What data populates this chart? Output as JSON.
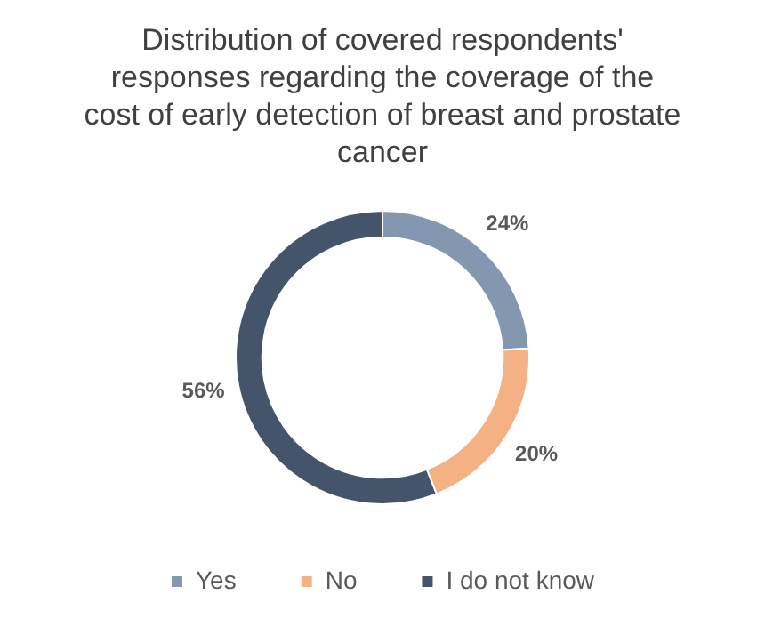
{
  "chart_data": {
    "type": "donut",
    "title": "Distribution of covered respondents' responses regarding the coverage of the cost of early detection of breast and prostate cancer",
    "categories": [
      "Yes",
      "No",
      "I do not know"
    ],
    "values": [
      24,
      20,
      56
    ],
    "value_labels": [
      "24%",
      "20%",
      "56%"
    ],
    "colors": [
      "#8497b0",
      "#f4b183",
      "#44546a"
    ],
    "legend": "bottom"
  }
}
